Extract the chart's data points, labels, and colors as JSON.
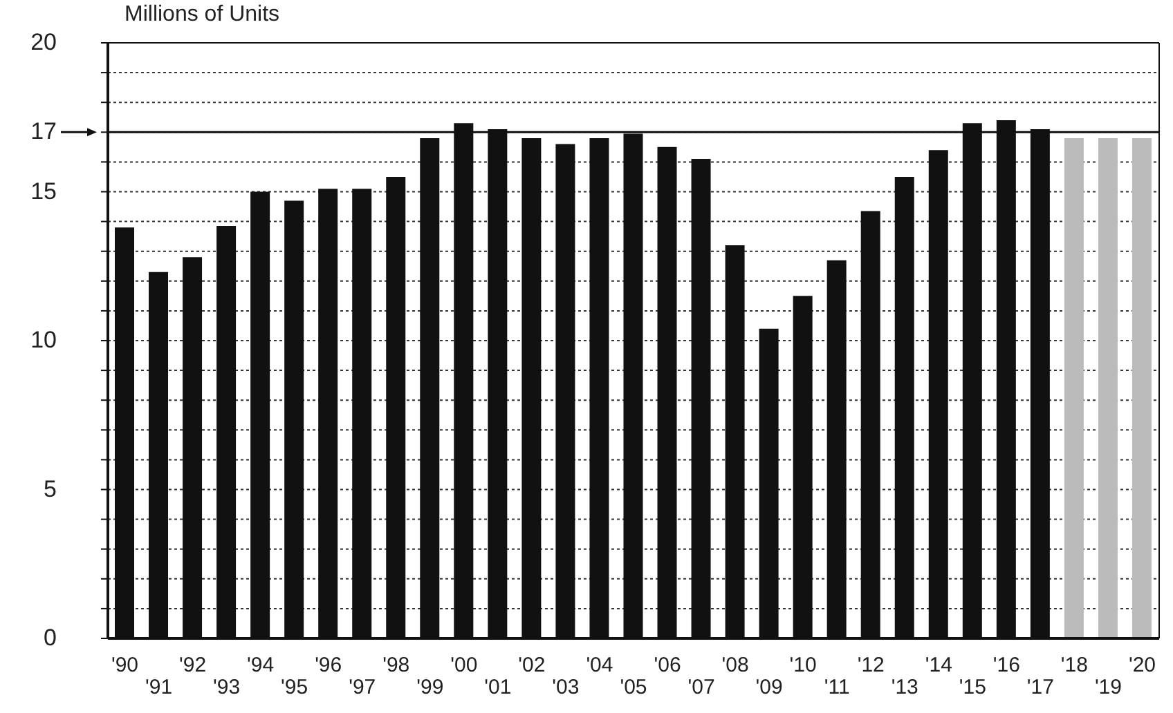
{
  "chart_data": {
    "type": "bar",
    "ylabel": "Millions of Units",
    "categories": [
      "'90",
      "'91",
      "'92",
      "'93",
      "'94",
      "'95",
      "'96",
      "'97",
      "'98",
      "'99",
      "'00",
      "'01",
      "'02",
      "'03",
      "'04",
      "'05",
      "'06",
      "'07",
      "'08",
      "'09",
      "'10",
      "'11",
      "'12",
      "'13",
      "'14",
      "'15",
      "'16",
      "'17",
      "'18",
      "'19",
      "'20"
    ],
    "values": [
      13.8,
      12.3,
      12.8,
      13.85,
      15.0,
      14.7,
      15.1,
      15.1,
      15.5,
      16.8,
      17.3,
      17.1,
      16.8,
      16.6,
      16.8,
      16.95,
      16.5,
      16.1,
      13.2,
      10.4,
      11.5,
      12.7,
      14.35,
      15.5,
      16.4,
      17.3,
      17.4,
      17.1,
      16.8,
      16.8,
      16.8
    ],
    "colors": [
      "#111111",
      "#111111",
      "#111111",
      "#111111",
      "#111111",
      "#111111",
      "#111111",
      "#111111",
      "#111111",
      "#111111",
      "#111111",
      "#111111",
      "#111111",
      "#111111",
      "#111111",
      "#111111",
      "#111111",
      "#111111",
      "#111111",
      "#111111",
      "#111111",
      "#111111",
      "#111111",
      "#111111",
      "#111111",
      "#111111",
      "#111111",
      "#111111",
      "#bbbbbb",
      "#bbbbbb",
      "#bbbbbb"
    ],
    "ylim": [
      0,
      20
    ],
    "yticks": [
      0,
      {
        "value": 1,
        "label": null
      },
      {
        "value": 2,
        "label": null
      },
      {
        "value": 3,
        "label": null
      },
      {
        "value": 4,
        "label": null
      },
      5,
      {
        "value": 6,
        "label": null
      },
      {
        "value": 7,
        "label": null
      },
      {
        "value": 8,
        "label": null
      },
      {
        "value": 9,
        "label": null
      },
      10,
      {
        "value": 11,
        "label": null
      },
      {
        "value": 12,
        "label": null
      },
      {
        "value": 13,
        "label": null
      },
      {
        "value": 14,
        "label": null
      },
      15,
      {
        "value": 16,
        "label": null
      },
      17,
      {
        "value": 18,
        "label": null
      },
      {
        "value": 19,
        "label": null
      },
      20
    ],
    "ref_lines": [
      {
        "axis": "y",
        "value": 17,
        "color": "#111111",
        "line_style": "solid"
      }
    ],
    "grid": "y",
    "legend": false
  }
}
